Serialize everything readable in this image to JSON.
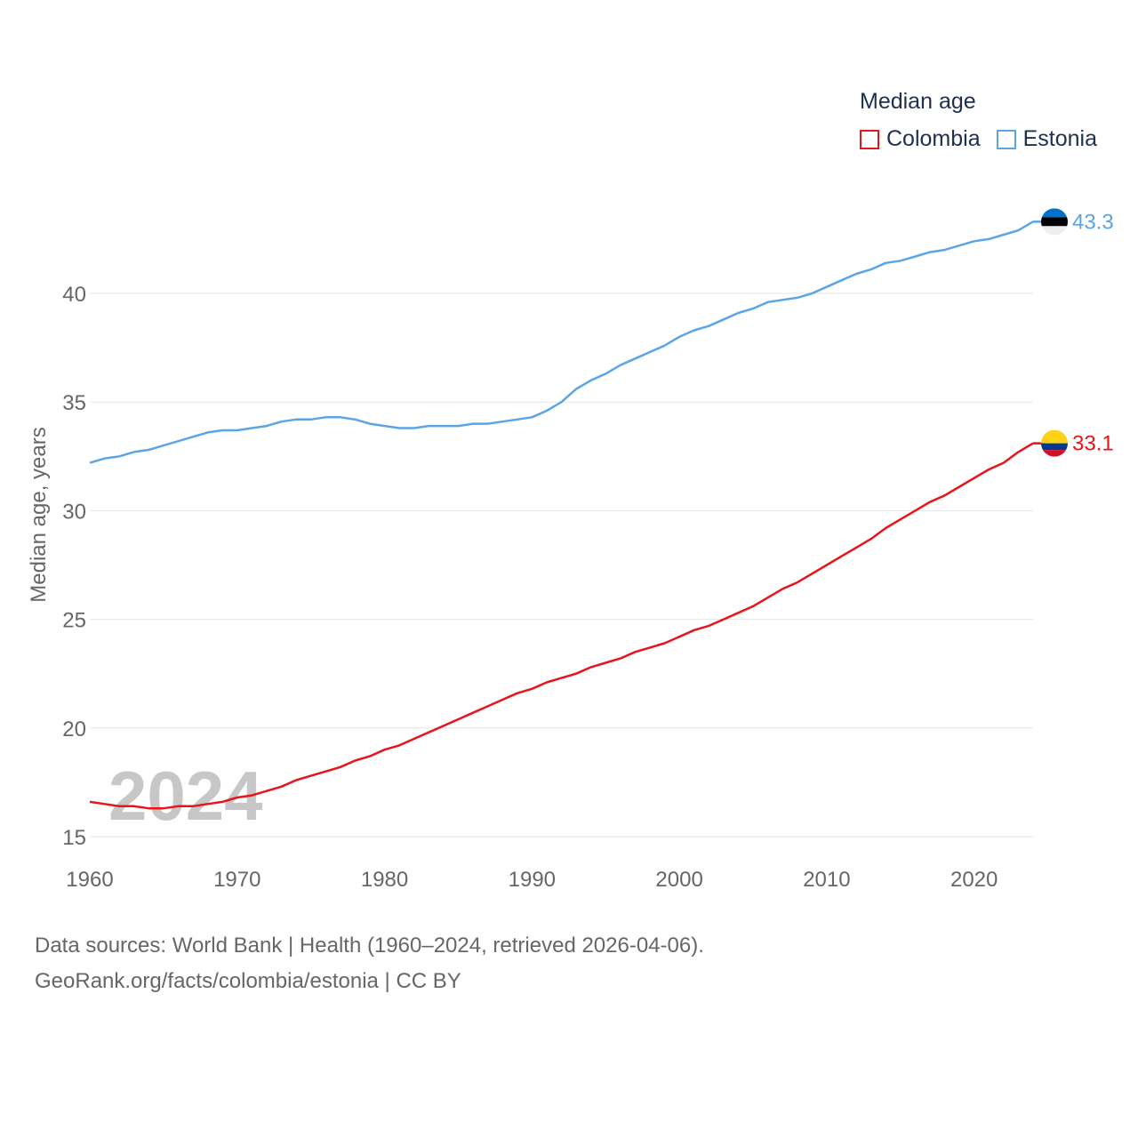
{
  "legend": {
    "title": "Median age",
    "items": [
      {
        "name": "Colombia",
        "color": "#e8141a"
      },
      {
        "name": "Estonia",
        "color": "#5aa5e6"
      }
    ]
  },
  "footer": {
    "line1": "Data sources: World Bank | Health (1960–2024, retrieved 2026-04-06).",
    "line2": "GeoRank.org/facts/colombia/estonia | CC BY"
  },
  "chart_data": {
    "type": "line",
    "title": "Median age",
    "xlabel": "",
    "ylabel": "Median age, years",
    "xlim": [
      1960,
      2024
    ],
    "ylim": [
      15,
      43.5
    ],
    "x_ticks": [
      1960,
      1970,
      1980,
      1990,
      2000,
      2010,
      2020
    ],
    "y_ticks": [
      15,
      20,
      25,
      30,
      35,
      40
    ],
    "grid": true,
    "legend_position": "top-right",
    "year_label": "2024",
    "x": [
      1960,
      1961,
      1962,
      1963,
      1964,
      1965,
      1966,
      1967,
      1968,
      1969,
      1970,
      1971,
      1972,
      1973,
      1974,
      1975,
      1976,
      1977,
      1978,
      1979,
      1980,
      1981,
      1982,
      1983,
      1984,
      1985,
      1986,
      1987,
      1988,
      1989,
      1990,
      1991,
      1992,
      1993,
      1994,
      1995,
      1996,
      1997,
      1998,
      1999,
      2000,
      2001,
      2002,
      2003,
      2004,
      2005,
      2006,
      2007,
      2008,
      2009,
      2010,
      2011,
      2012,
      2013,
      2014,
      2015,
      2016,
      2017,
      2018,
      2019,
      2020,
      2021,
      2022,
      2023,
      2024
    ],
    "series": [
      {
        "name": "Colombia",
        "color": "#e8141a",
        "flag": "colombia-flag-icon",
        "end_label": "33.1",
        "values": [
          16.6,
          16.5,
          16.4,
          16.4,
          16.3,
          16.3,
          16.4,
          16.4,
          16.5,
          16.6,
          16.8,
          16.9,
          17.1,
          17.3,
          17.6,
          17.8,
          18.0,
          18.2,
          18.5,
          18.7,
          19.0,
          19.2,
          19.5,
          19.8,
          20.1,
          20.4,
          20.7,
          21.0,
          21.3,
          21.6,
          21.8,
          22.1,
          22.3,
          22.5,
          22.8,
          23.0,
          23.2,
          23.5,
          23.7,
          23.9,
          24.2,
          24.5,
          24.7,
          25.0,
          25.3,
          25.6,
          26.0,
          26.4,
          26.7,
          27.1,
          27.5,
          27.9,
          28.3,
          28.7,
          29.2,
          29.6,
          30.0,
          30.4,
          30.7,
          31.1,
          31.5,
          31.9,
          32.2,
          32.7,
          33.1
        ]
      },
      {
        "name": "Estonia",
        "color": "#5aa5e6",
        "flag": "estonia-flag-icon",
        "end_label": "43.3",
        "values": [
          32.2,
          32.4,
          32.5,
          32.7,
          32.8,
          33.0,
          33.2,
          33.4,
          33.6,
          33.7,
          33.7,
          33.8,
          33.9,
          34.1,
          34.2,
          34.2,
          34.3,
          34.3,
          34.2,
          34.0,
          33.9,
          33.8,
          33.8,
          33.9,
          33.9,
          33.9,
          34.0,
          34.0,
          34.1,
          34.2,
          34.3,
          34.6,
          35.0,
          35.6,
          36.0,
          36.3,
          36.7,
          37.0,
          37.3,
          37.6,
          38.0,
          38.3,
          38.5,
          38.8,
          39.1,
          39.3,
          39.6,
          39.7,
          39.8,
          40.0,
          40.3,
          40.6,
          40.9,
          41.1,
          41.4,
          41.5,
          41.7,
          41.9,
          42.0,
          42.2,
          42.4,
          42.5,
          42.7,
          42.9,
          43.3
        ]
      }
    ]
  }
}
